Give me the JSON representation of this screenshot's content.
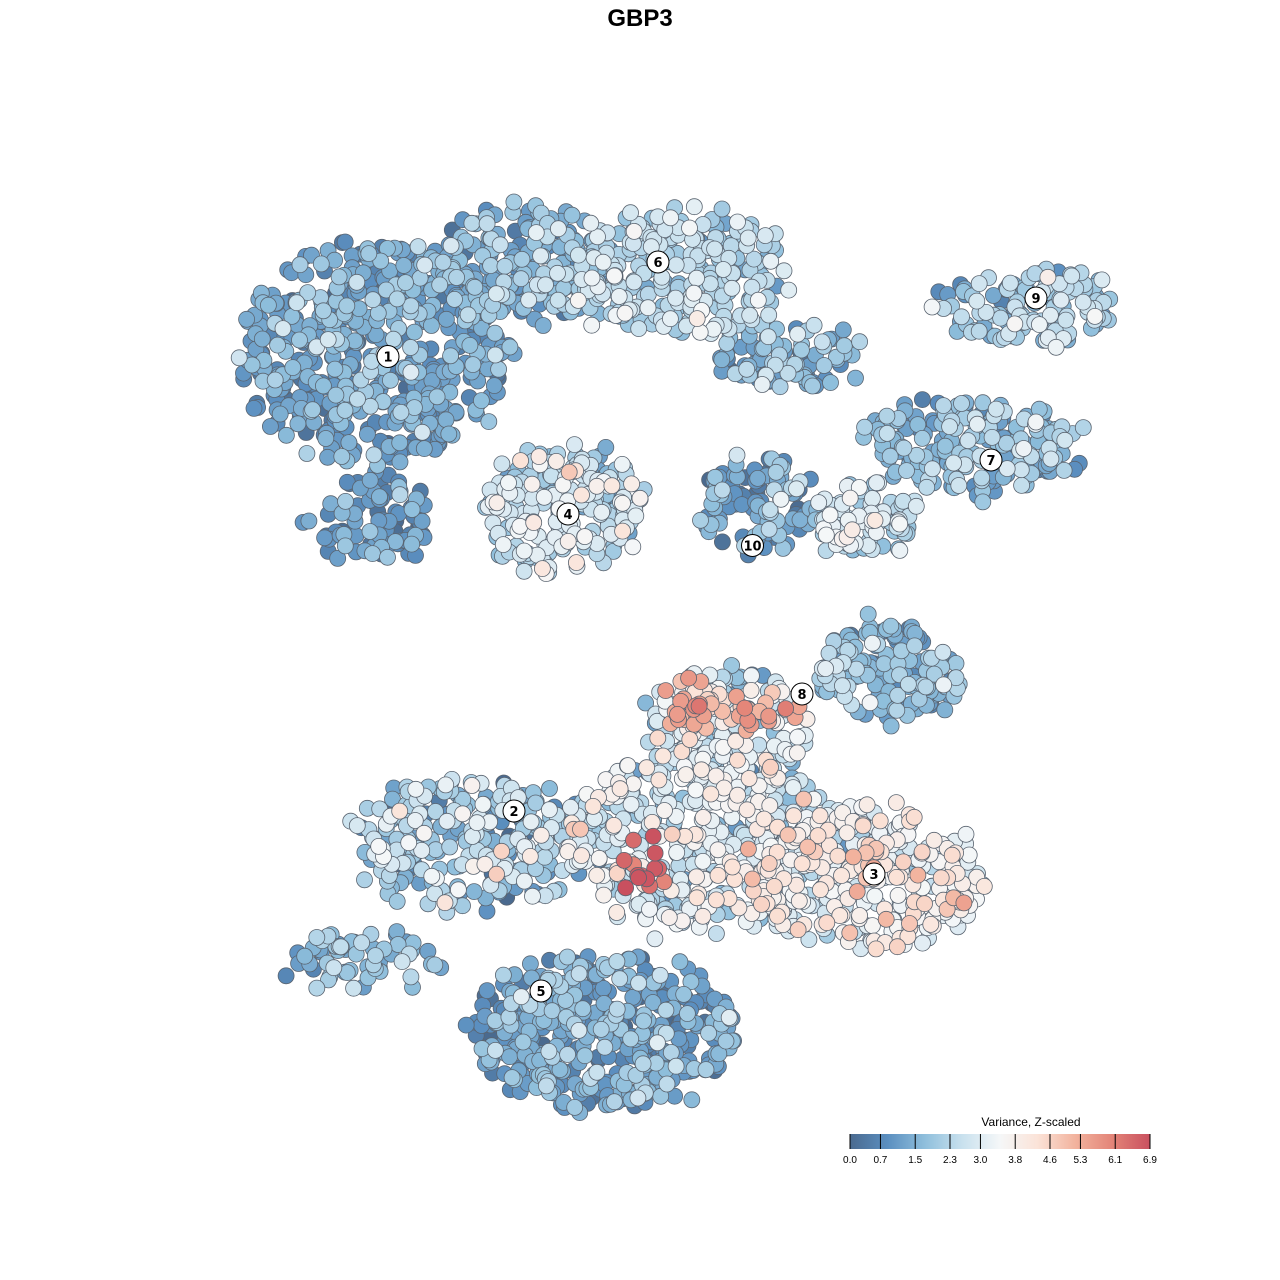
{
  "chart_data": {
    "type": "scatter",
    "title": "GBP3",
    "legend": {
      "title": "Variance, Z-scaled",
      "placement": "bottom-right",
      "ticks": [
        "0.0",
        "0.7",
        "1.5",
        "2.3",
        "3.0",
        "3.8",
        "4.6",
        "5.3",
        "6.1",
        "6.9"
      ],
      "min": 0.0,
      "max": 6.9,
      "color_stops": [
        "#4a6a8f",
        "#5b8fc0",
        "#8fbfdc",
        "#c9e1ee",
        "#f5f7f8",
        "#fbe3d8",
        "#f2b39e",
        "#e38478",
        "#c9505f"
      ]
    },
    "clusters": [
      {
        "label": "1",
        "x": -5.6,
        "y": 6.3,
        "mean": 1.3
      },
      {
        "label": "2",
        "x": -2.8,
        "y": -3.8,
        "mean": 2.0
      },
      {
        "label": "3",
        "x": 5.2,
        "y": -5.2,
        "mean": 3.5
      },
      {
        "label": "4",
        "x": -1.6,
        "y": 2.8,
        "mean": 2.6
      },
      {
        "label": "5",
        "x": -2.2,
        "y": -7.8,
        "mean": 1.4
      },
      {
        "label": "6",
        "x": 0.4,
        "y": 8.4,
        "mean": 2.3
      },
      {
        "label": "7",
        "x": 7.8,
        "y": 4.0,
        "mean": 1.8
      },
      {
        "label": "8",
        "x": 3.6,
        "y": -1.2,
        "mean": 1.6
      },
      {
        "label": "9",
        "x": 8.8,
        "y": 7.6,
        "mean": 2.2
      },
      {
        "label": "10",
        "x": 2.5,
        "y": 2.1,
        "mean": 1.0
      }
    ],
    "xlim": [
      -12,
      12
    ],
    "ylim": [
      -12,
      12
    ],
    "grid": false,
    "axes_visible": false
  }
}
